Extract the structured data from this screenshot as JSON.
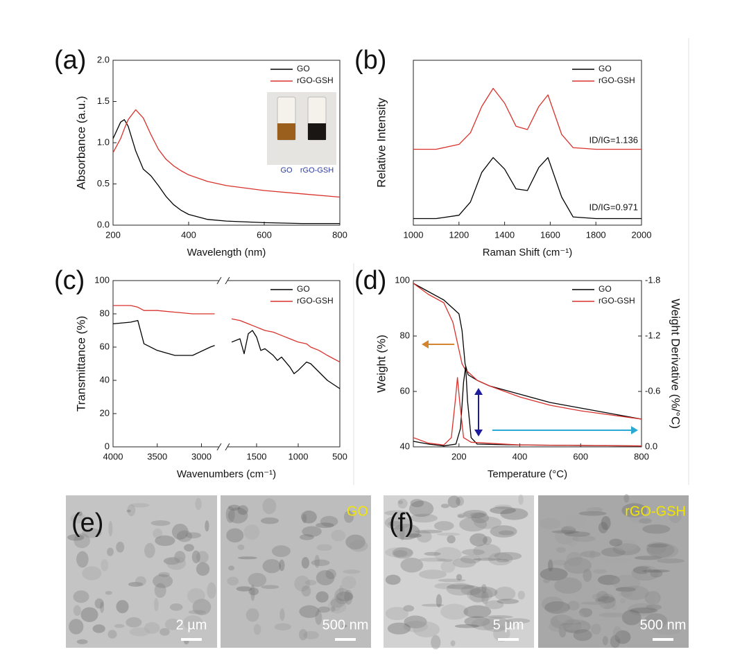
{
  "chart_data": [
    {
      "type": "line",
      "panel": "(a)",
      "xlabel": "Wavelength (nm)",
      "ylabel": "Absorbance (a.u.)",
      "xlim": [
        200,
        800
      ],
      "xticks": [
        200,
        400,
        600,
        800
      ],
      "ylim": [
        0,
        2
      ],
      "yticks": [
        {
          "value": 0,
          "label": "0.0"
        },
        0.5,
        {
          "value": 1,
          "label": "1.0"
        },
        1.5,
        {
          "value": 2,
          "label": "2.0"
        }
      ],
      "legend": "upper right",
      "inset_labels": [
        "GO",
        "rGO-GSH"
      ],
      "x": [
        200,
        220,
        230,
        240,
        260,
        280,
        300,
        320,
        340,
        360,
        380,
        400,
        450,
        500,
        600,
        700,
        800
      ],
      "series": [
        {
          "name": "GO",
          "color": "#000000",
          "values": [
            1.05,
            1.25,
            1.28,
            1.2,
            0.9,
            0.68,
            0.6,
            0.48,
            0.35,
            0.25,
            0.18,
            0.13,
            0.07,
            0.05,
            0.03,
            0.02,
            0.02
          ]
        },
        {
          "name": "rGO-GSH",
          "color": "#d9312b",
          "values": [
            0.88,
            1.05,
            1.17,
            1.28,
            1.4,
            1.3,
            1.1,
            0.92,
            0.8,
            0.72,
            0.66,
            0.61,
            0.53,
            0.48,
            0.42,
            0.38,
            0.34
          ]
        }
      ]
    },
    {
      "type": "line",
      "panel": "(b)",
      "xlabel": "Raman Shift (cm⁻¹)",
      "ylabel": "Relative Intensity",
      "xlim": [
        1000,
        2000
      ],
      "xticks": [
        1000,
        1200,
        1400,
        1600,
        1800,
        2000
      ],
      "ylim": [
        0,
        1
      ],
      "legend": "upper right",
      "annotations": [
        "ID/IG=1.136",
        "ID/IG=0.971"
      ],
      "x": [
        1000,
        1100,
        1200,
        1250,
        1300,
        1350,
        1400,
        1450,
        1500,
        1550,
        1590,
        1650,
        1700,
        1800,
        1900,
        2000
      ],
      "series": [
        {
          "name": "GO",
          "color": "#000000",
          "values": [
            0.04,
            0.04,
            0.06,
            0.14,
            0.32,
            0.41,
            0.34,
            0.22,
            0.21,
            0.35,
            0.41,
            0.17,
            0.05,
            0.04,
            0.04,
            0.04
          ]
        },
        {
          "name": "rGO-GSH",
          "color": "#d9312b",
          "values": [
            0.46,
            0.46,
            0.49,
            0.56,
            0.72,
            0.83,
            0.74,
            0.6,
            0.58,
            0.72,
            0.79,
            0.55,
            0.47,
            0.46,
            0.46,
            0.46
          ]
        }
      ]
    },
    {
      "type": "line",
      "panel": "(c)",
      "xlabel": "Wavenumbers (cm⁻¹)",
      "ylabel": "Transmittance (%)",
      "xlim": [
        4000,
        500
      ],
      "x_break": [
        2800,
        1850
      ],
      "xticks": [
        4000,
        3500,
        3000,
        1500,
        1000,
        500
      ],
      "ylim": [
        0,
        100
      ],
      "yticks": [
        0,
        20,
        40,
        60,
        80,
        100
      ],
      "legend": "upper right",
      "x": [
        4000,
        3800,
        3720,
        3650,
        3500,
        3300,
        3100,
        2900,
        2850,
        1800,
        1700,
        1650,
        1600,
        1550,
        1500,
        1450,
        1400,
        1300,
        1250,
        1200,
        1100,
        1050,
        1000,
        900,
        850,
        750,
        650,
        500
      ],
      "series": [
        {
          "name": "GO",
          "color": "#000000",
          "values": [
            74,
            75,
            76,
            62,
            58,
            55,
            55,
            60,
            61,
            63,
            65,
            56,
            68,
            70,
            66,
            58,
            59,
            55,
            52,
            54,
            48,
            44,
            46,
            51,
            50,
            45,
            40,
            35
          ]
        },
        {
          "name": "rGO-GSH",
          "color": "#d9312b",
          "values": [
            85,
            85,
            84,
            82,
            82,
            81,
            80,
            80,
            80,
            77,
            76,
            75,
            74,
            73,
            72,
            71,
            70,
            69,
            68,
            67,
            65,
            64,
            63,
            62,
            60,
            58,
            55,
            51
          ]
        }
      ]
    },
    {
      "type": "line",
      "panel": "(d)",
      "xlabel": "Temperature (°C)",
      "ylabel": "Weight (%)",
      "y2label": "Weight Derivative (%/°C)",
      "xlim": [
        50,
        800
      ],
      "xticks": [
        200,
        400,
        600,
        800
      ],
      "ylim": [
        40,
        100
      ],
      "yticks": [
        40,
        60,
        80,
        100
      ],
      "y2lim": [
        0,
        -1.8
      ],
      "y2ticks": [
        {
          "value": 0,
          "label": "0.0"
        },
        -0.6,
        -1.2,
        -1.8
      ],
      "legend": "upper right",
      "series": [
        {
          "name": "GO",
          "color": "#000000",
          "x": [
            50,
            100,
            150,
            200,
            210,
            220,
            230,
            260,
            300,
            400,
            500,
            600,
            700,
            800
          ],
          "values": [
            99,
            96,
            93,
            88,
            82,
            70,
            66,
            64,
            62,
            59,
            56,
            54,
            52,
            50
          ]
        },
        {
          "name": "rGO-GSH",
          "color": "#d9312b",
          "x": [
            50,
            100,
            150,
            180,
            200,
            210,
            220,
            260,
            300,
            400,
            500,
            600,
            700,
            800
          ],
          "values": [
            99,
            95,
            92,
            85,
            75,
            70,
            68,
            64,
            62,
            58,
            55,
            53,
            51.5,
            50
          ]
        },
        {
          "color": "#000000",
          "axis": "y2",
          "x": [
            50,
            100,
            150,
            190,
            205,
            215,
            222,
            228,
            240,
            260,
            400,
            800
          ],
          "values": [
            -0.06,
            -0.03,
            -0.01,
            -0.03,
            -0.2,
            -0.7,
            -0.87,
            -0.5,
            -0.1,
            -0.03,
            -0.02,
            -0.01
          ]
        },
        {
          "color": "#d9312b",
          "axis": "y2",
          "x": [
            50,
            100,
            150,
            175,
            188,
            195,
            202,
            215,
            240,
            400,
            800
          ],
          "values": [
            -0.1,
            -0.04,
            -0.02,
            -0.1,
            -0.5,
            -0.75,
            -0.5,
            -0.1,
            -0.05,
            -0.02,
            -0.01
          ]
        }
      ]
    }
  ],
  "micrographs": {
    "panels": [
      {
        "label": "(e)",
        "images": [
          {
            "scale_bar": "2 µm"
          },
          {
            "tag": "GO",
            "scale_bar": "500 nm"
          }
        ]
      },
      {
        "label": "(f)",
        "images": [
          {
            "scale_bar": "5 µm"
          },
          {
            "tag": "rGO-GSH",
            "scale_bar": "500 nm"
          }
        ]
      }
    ]
  }
}
